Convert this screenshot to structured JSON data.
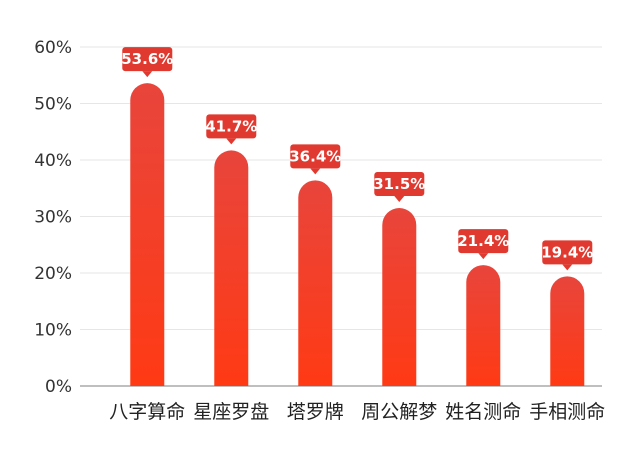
{
  "chart_data": {
    "type": "bar",
    "title": "",
    "xlabel": "",
    "ylabel": "",
    "categories": [
      "八字算命",
      "星座罗盘",
      "塔罗牌",
      "周公解梦",
      "姓名测命",
      "手相测命"
    ],
    "values": [
      53.6,
      41.7,
      36.4,
      31.5,
      21.4,
      19.4
    ],
    "value_labels": [
      "53.6%",
      "41.7%",
      "36.4%",
      "31.5%",
      "21.4%",
      "19.4%"
    ],
    "ylim": [
      0,
      60
    ],
    "yticks": [
      0,
      10,
      20,
      30,
      40,
      50,
      60
    ],
    "ytick_labels": [
      "0%",
      "10%",
      "20%",
      "30%",
      "40%",
      "50%",
      "60%"
    ],
    "grid": true,
    "legend": "none",
    "colors": {
      "bar_top": "#e8453c",
      "bar_bottom": "#ff3a14",
      "label_bg": "#e0392f",
      "grid": "#e6e6e6",
      "axis": "#999999"
    }
  }
}
